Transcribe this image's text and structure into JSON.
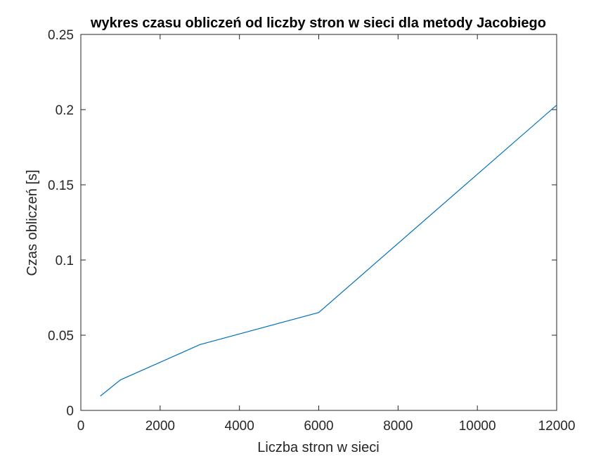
{
  "chart_data": {
    "type": "line",
    "title": "wykres czasu obliczeń od liczby stron w sieci dla metody Jacobiego",
    "xlabel": "Liczba stron w sieci",
    "ylabel": "Czas obliczeń [s]",
    "xlim": [
      0,
      12000
    ],
    "ylim": [
      0,
      0.25
    ],
    "xticks": [
      0,
      2000,
      4000,
      6000,
      8000,
      10000,
      12000
    ],
    "yticks": [
      0,
      0.05,
      0.1,
      0.15,
      0.2,
      0.25
    ],
    "xtick_labels": [
      "0",
      "2000",
      "4000",
      "6000",
      "8000",
      "10000",
      "12000"
    ],
    "ytick_labels": [
      "0",
      "0.05",
      "0.1",
      "0.15",
      "0.2",
      "0.25"
    ],
    "grid": false,
    "series": [
      {
        "color": "#0072BD",
        "x": [
          500,
          1000,
          3000,
          6000,
          12000
        ],
        "y": [
          0.0097,
          0.0203,
          0.0437,
          0.0651,
          0.203
        ]
      }
    ]
  }
}
